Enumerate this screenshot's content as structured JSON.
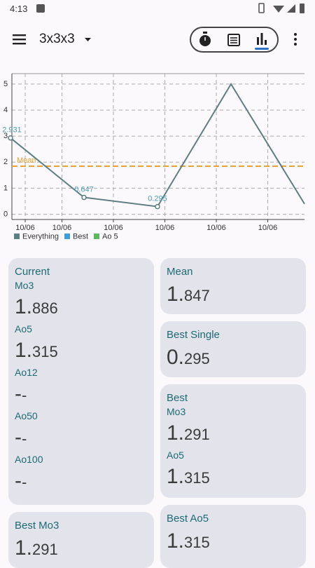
{
  "status_bar": {
    "time": "4:13"
  },
  "toolbar": {
    "title": "3x3x3"
  },
  "chart_data": {
    "type": "line",
    "x": [
      0,
      1,
      2,
      3,
      4
    ],
    "xlim": [
      0,
      4
    ],
    "xticks": [
      {
        "value": 0.2,
        "label": "10/06"
      },
      {
        "value": 0.7,
        "label": "10/06"
      },
      {
        "value": 1.4,
        "label": "10/06"
      },
      {
        "value": 2.1,
        "label": "10/06"
      },
      {
        "value": 2.8,
        "label": "10/06"
      },
      {
        "value": 3.5,
        "label": "10/06"
      }
    ],
    "ylim": [
      -0.2,
      5.4
    ],
    "yticks": [
      0,
      1,
      2,
      3,
      4,
      5
    ],
    "grid": true,
    "series": [
      {
        "name": "Everything",
        "color": "#5e7e82",
        "values": [
          2.931,
          0.647,
          0.295,
          5,
          0.4
        ],
        "value_labels": [
          "2.931",
          "0.647",
          "0.295",
          null,
          null
        ]
      },
      {
        "name": "Best",
        "color": "#3f9fd4",
        "values": [
          null,
          null,
          null,
          null,
          null
        ]
      },
      {
        "name": "Ao 5",
        "color": "#5cb85c",
        "values": [
          null,
          null,
          null,
          null,
          null
        ]
      }
    ],
    "mean": {
      "label": "Mean",
      "value": 1.847,
      "color": "#e6a233"
    }
  },
  "cards": [
    {
      "title": "Current",
      "items": [
        {
          "label": "Mo3",
          "value": "1.886"
        },
        {
          "label": "Ao5",
          "value": "1.315"
        },
        {
          "label": "Ao12",
          "value": "--"
        },
        {
          "label": "Ao50",
          "value": "--"
        },
        {
          "label": "Ao100",
          "value": "--"
        }
      ]
    },
    {
      "title": "Mean",
      "value": "1.847"
    },
    {
      "title": "Best Single",
      "value": "0.295"
    },
    {
      "title": "Best",
      "items": [
        {
          "label": "Mo3",
          "value": "1.291"
        },
        {
          "label": "Ao5",
          "value": "1.315"
        }
      ]
    },
    {
      "title": "Best Mo3",
      "value": "1.291"
    },
    {
      "title": "Best Ao5",
      "value": "1.315"
    }
  ]
}
